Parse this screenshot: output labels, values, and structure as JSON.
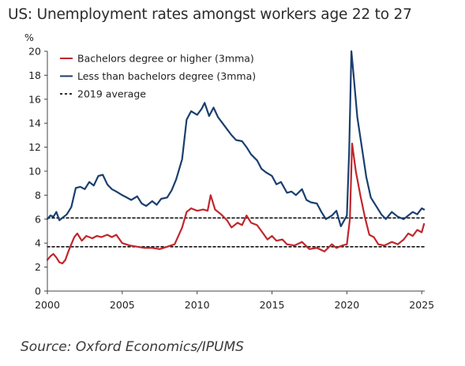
{
  "title": "US: Unemployment rates amongst workers age 22 to 27",
  "source": "Source: Oxford Economics/IPUMS",
  "colors": {
    "bachelors": "#c0272d",
    "less_than": "#1a3f6e",
    "average": "#111111"
  },
  "chart_data": {
    "type": "line",
    "unit": "%",
    "xlim": [
      2000,
      2025.2
    ],
    "ylim": [
      0,
      20
    ],
    "xticks": [
      2000,
      2005,
      2010,
      2015,
      2020,
      2025
    ],
    "yticks": [
      0,
      2,
      4,
      6,
      8,
      10,
      12,
      14,
      16,
      18,
      20
    ],
    "legend": [
      "Bachelors degree or higher (3mma)",
      "Less than bachelors degree (3mma)",
      "2019 average"
    ],
    "series": [
      {
        "name": "Bachelors degree or higher (3mma)",
        "points": [
          [
            2000,
            2.6
          ],
          [
            2000.2,
            2.9
          ],
          [
            2000.4,
            3.1
          ],
          [
            2000.6,
            2.8
          ],
          [
            2000.8,
            2.4
          ],
          [
            2001,
            2.3
          ],
          [
            2001.2,
            2.6
          ],
          [
            2001.4,
            3.3
          ],
          [
            2001.6,
            3.9
          ],
          [
            2001.8,
            4.5
          ],
          [
            2002,
            4.8
          ],
          [
            2002.3,
            4.2
          ],
          [
            2002.6,
            4.6
          ],
          [
            2003,
            4.4
          ],
          [
            2003.3,
            4.6
          ],
          [
            2003.6,
            4.5
          ],
          [
            2004,
            4.7
          ],
          [
            2004.3,
            4.5
          ],
          [
            2004.6,
            4.7
          ],
          [
            2005,
            4.0
          ],
          [
            2005.5,
            3.8
          ],
          [
            2006,
            3.7
          ],
          [
            2006.5,
            3.6
          ],
          [
            2007,
            3.6
          ],
          [
            2007.5,
            3.5
          ],
          [
            2008,
            3.7
          ],
          [
            2008.5,
            3.9
          ],
          [
            2009,
            5.3
          ],
          [
            2009.3,
            6.6
          ],
          [
            2009.6,
            6.9
          ],
          [
            2010,
            6.7
          ],
          [
            2010.4,
            6.8
          ],
          [
            2010.7,
            6.7
          ],
          [
            2010.9,
            8.0
          ],
          [
            2011.2,
            6.8
          ],
          [
            2011.6,
            6.4
          ],
          [
            2012,
            5.9
          ],
          [
            2012.3,
            5.3
          ],
          [
            2012.7,
            5.7
          ],
          [
            2013,
            5.5
          ],
          [
            2013.3,
            6.3
          ],
          [
            2013.6,
            5.7
          ],
          [
            2014,
            5.5
          ],
          [
            2014.3,
            5.0
          ],
          [
            2014.7,
            4.3
          ],
          [
            2015,
            4.6
          ],
          [
            2015.3,
            4.2
          ],
          [
            2015.7,
            4.3
          ],
          [
            2016,
            3.9
          ],
          [
            2016.5,
            3.8
          ],
          [
            2017,
            4.1
          ],
          [
            2017.5,
            3.5
          ],
          [
            2018,
            3.6
          ],
          [
            2018.5,
            3.3
          ],
          [
            2019,
            3.9
          ],
          [
            2019.3,
            3.6
          ],
          [
            2019.7,
            3.8
          ],
          [
            2020,
            3.9
          ],
          [
            2020.2,
            6.0
          ],
          [
            2020.35,
            12.3
          ],
          [
            2020.6,
            10.0
          ],
          [
            2020.9,
            8.0
          ],
          [
            2021.2,
            6.2
          ],
          [
            2021.5,
            4.7
          ],
          [
            2021.8,
            4.5
          ],
          [
            2022.1,
            3.9
          ],
          [
            2022.5,
            3.8
          ],
          [
            2023,
            4.1
          ],
          [
            2023.4,
            3.9
          ],
          [
            2023.8,
            4.3
          ],
          [
            2024.1,
            4.8
          ],
          [
            2024.4,
            4.6
          ],
          [
            2024.7,
            5.1
          ],
          [
            2025,
            4.9
          ],
          [
            2025.15,
            5.6
          ]
        ]
      },
      {
        "name": "Less than bachelors degree (3mma)",
        "points": [
          [
            2000,
            6.0
          ],
          [
            2000.2,
            6.3
          ],
          [
            2000.4,
            6.2
          ],
          [
            2000.6,
            6.6
          ],
          [
            2000.8,
            5.9
          ],
          [
            2001,
            6.1
          ],
          [
            2001.3,
            6.4
          ],
          [
            2001.6,
            7.0
          ],
          [
            2001.9,
            8.6
          ],
          [
            2002.2,
            8.7
          ],
          [
            2002.5,
            8.5
          ],
          [
            2002.8,
            9.1
          ],
          [
            2003.1,
            8.8
          ],
          [
            2003.4,
            9.6
          ],
          [
            2003.7,
            9.7
          ],
          [
            2004,
            8.9
          ],
          [
            2004.3,
            8.5
          ],
          [
            2004.6,
            8.3
          ],
          [
            2005,
            8.0
          ],
          [
            2005.3,
            7.8
          ],
          [
            2005.6,
            7.6
          ],
          [
            2006,
            7.9
          ],
          [
            2006.3,
            7.3
          ],
          [
            2006.6,
            7.1
          ],
          [
            2007,
            7.5
          ],
          [
            2007.3,
            7.2
          ],
          [
            2007.6,
            7.7
          ],
          [
            2008,
            7.8
          ],
          [
            2008.3,
            8.4
          ],
          [
            2008.6,
            9.3
          ],
          [
            2009,
            11.0
          ],
          [
            2009.3,
            14.3
          ],
          [
            2009.6,
            15.0
          ],
          [
            2010,
            14.7
          ],
          [
            2010.3,
            15.2
          ],
          [
            2010.5,
            15.7
          ],
          [
            2010.8,
            14.6
          ],
          [
            2011.1,
            15.3
          ],
          [
            2011.4,
            14.5
          ],
          [
            2011.7,
            14.0
          ],
          [
            2012,
            13.5
          ],
          [
            2012.3,
            13.0
          ],
          [
            2012.6,
            12.6
          ],
          [
            2013,
            12.5
          ],
          [
            2013.3,
            12.0
          ],
          [
            2013.6,
            11.4
          ],
          [
            2014,
            10.9
          ],
          [
            2014.3,
            10.2
          ],
          [
            2014.6,
            9.9
          ],
          [
            2015,
            9.6
          ],
          [
            2015.3,
            8.9
          ],
          [
            2015.6,
            9.1
          ],
          [
            2016,
            8.2
          ],
          [
            2016.3,
            8.3
          ],
          [
            2016.6,
            8.0
          ],
          [
            2017,
            8.5
          ],
          [
            2017.3,
            7.6
          ],
          [
            2017.6,
            7.4
          ],
          [
            2018,
            7.3
          ],
          [
            2018.3,
            6.6
          ],
          [
            2018.6,
            6.0
          ],
          [
            2019,
            6.3
          ],
          [
            2019.3,
            6.7
          ],
          [
            2019.6,
            5.4
          ],
          [
            2020,
            6.3
          ],
          [
            2020.15,
            11.5
          ],
          [
            2020.3,
            20.0
          ],
          [
            2020.45,
            18.0
          ],
          [
            2020.7,
            14.5
          ],
          [
            2021,
            12.0
          ],
          [
            2021.3,
            9.5
          ],
          [
            2021.6,
            7.8
          ],
          [
            2022,
            7.0
          ],
          [
            2022.3,
            6.4
          ],
          [
            2022.6,
            6.0
          ],
          [
            2023,
            6.6
          ],
          [
            2023.4,
            6.2
          ],
          [
            2023.8,
            6.0
          ],
          [
            2024.1,
            6.3
          ],
          [
            2024.4,
            6.6
          ],
          [
            2024.7,
            6.4
          ],
          [
            2025,
            6.9
          ],
          [
            2025.15,
            6.8
          ]
        ]
      },
      {
        "name": "2019 average",
        "points": [
          [
            2000,
            6.1
          ],
          [
            2025.2,
            6.1
          ]
        ]
      },
      {
        "name": "2019 average",
        "points": [
          [
            2000,
            3.7
          ],
          [
            2025.2,
            3.7
          ]
        ]
      }
    ]
  }
}
